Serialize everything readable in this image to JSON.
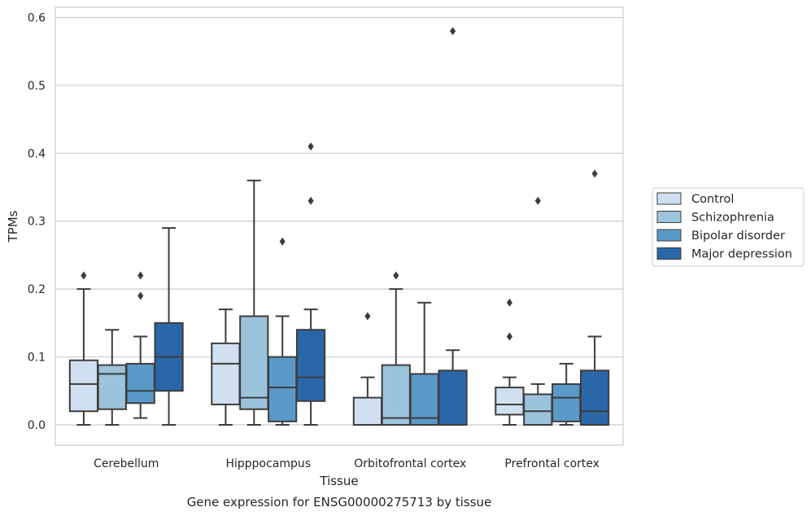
{
  "chart_data": {
    "type": "box",
    "caption": "Gene expression for ENSG00000275713 by tissue",
    "xlabel": "Tissue",
    "ylabel": "TPMs",
    "ylim": [
      -0.03,
      0.615
    ],
    "yticks": [
      "0.0",
      "0.1",
      "0.2",
      "0.3",
      "0.4",
      "0.5",
      "0.6"
    ],
    "grid": "horizontal",
    "legend_position": "right",
    "categories": [
      "Cerebellum",
      "Hipppocampus",
      "Orbitofrontal cortex",
      "Prefrontal cortex"
    ],
    "series": [
      {
        "name": "Control",
        "color": "#d0e0f0",
        "boxes": [
          {
            "whisker_low": 0.0,
            "q1": 0.02,
            "median": 0.06,
            "q3": 0.095,
            "whisker_high": 0.2,
            "outliers": [
              0.22
            ]
          },
          {
            "whisker_low": 0.0,
            "q1": 0.03,
            "median": 0.09,
            "q3": 0.12,
            "whisker_high": 0.17,
            "outliers": []
          },
          {
            "whisker_low": 0.0,
            "q1": 0.0,
            "median": 0.0,
            "q3": 0.04,
            "whisker_high": 0.07,
            "outliers": [
              0.16
            ]
          },
          {
            "whisker_low": 0.0,
            "q1": 0.015,
            "median": 0.03,
            "q3": 0.055,
            "whisker_high": 0.07,
            "outliers": [
              0.13,
              0.18
            ]
          }
        ]
      },
      {
        "name": "Schizophrenia",
        "color": "#9cc3dc",
        "boxes": [
          {
            "whisker_low": 0.0,
            "q1": 0.023,
            "median": 0.075,
            "q3": 0.088,
            "whisker_high": 0.14,
            "outliers": []
          },
          {
            "whisker_low": 0.0,
            "q1": 0.023,
            "median": 0.04,
            "q3": 0.16,
            "whisker_high": 0.36,
            "outliers": []
          },
          {
            "whisker_low": 0.0,
            "q1": 0.0,
            "median": 0.01,
            "q3": 0.088,
            "whisker_high": 0.2,
            "outliers": [
              0.22
            ]
          },
          {
            "whisker_low": 0.0,
            "q1": 0.0,
            "median": 0.02,
            "q3": 0.045,
            "whisker_high": 0.06,
            "outliers": [
              0.33
            ]
          }
        ]
      },
      {
        "name": "Bipolar disorder",
        "color": "#5a9ac8",
        "boxes": [
          {
            "whisker_low": 0.01,
            "q1": 0.032,
            "median": 0.05,
            "q3": 0.09,
            "whisker_high": 0.13,
            "outliers": [
              0.19,
              0.22
            ]
          },
          {
            "whisker_low": 0.0,
            "q1": 0.005,
            "median": 0.055,
            "q3": 0.1,
            "whisker_high": 0.16,
            "outliers": [
              0.27
            ]
          },
          {
            "whisker_low": 0.0,
            "q1": 0.0,
            "median": 0.01,
            "q3": 0.075,
            "whisker_high": 0.18,
            "outliers": []
          },
          {
            "whisker_low": 0.0,
            "q1": 0.005,
            "median": 0.04,
            "q3": 0.06,
            "whisker_high": 0.09,
            "outliers": []
          }
        ]
      },
      {
        "name": "Major depression",
        "color": "#2a67a8",
        "boxes": [
          {
            "whisker_low": 0.0,
            "q1": 0.05,
            "median": 0.1,
            "q3": 0.15,
            "whisker_high": 0.29,
            "outliers": []
          },
          {
            "whisker_low": 0.0,
            "q1": 0.035,
            "median": 0.07,
            "q3": 0.14,
            "whisker_high": 0.17,
            "outliers": [
              0.33,
              0.41
            ]
          },
          {
            "whisker_low": 0.0,
            "q1": 0.0,
            "median": 0.0,
            "q3": 0.08,
            "whisker_high": 0.11,
            "outliers": [
              0.58
            ]
          },
          {
            "whisker_low": 0.0,
            "q1": 0.0,
            "median": 0.02,
            "q3": 0.08,
            "whisker_high": 0.13,
            "outliers": [
              0.37
            ]
          }
        ]
      }
    ]
  }
}
